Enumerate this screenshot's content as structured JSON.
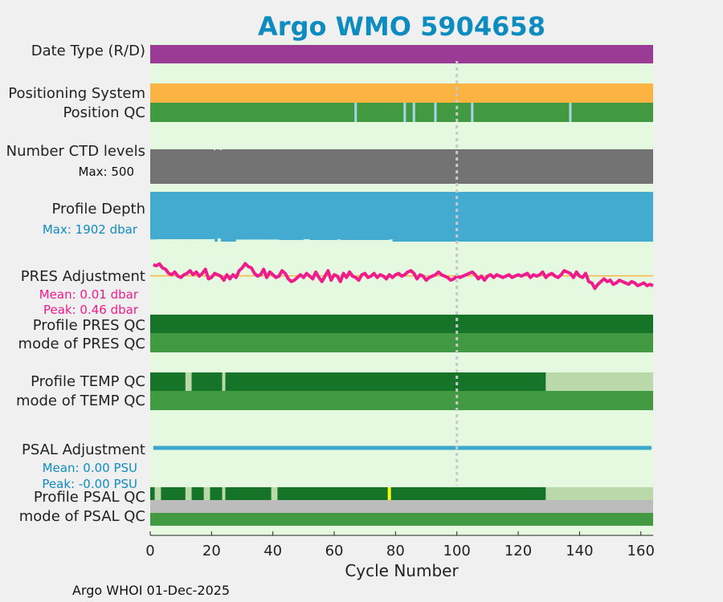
{
  "title": "Argo WMO 5904658",
  "footer": "Argo WHOI 01-Dec-2025",
  "colors": {
    "figure_bg": "#f0f0f0",
    "panel_bg": "#e4f9df",
    "title": "#0e8cc0",
    "purple": "#9a3c96",
    "orange": "#fbb441",
    "good": "#419a41",
    "dark_good": "#167428",
    "light_good": "#bad9aa",
    "light_blue": "#a8d6e8",
    "grey": "#737373",
    "profile_blue": "#42abcf",
    "pink": "#ee1c8c",
    "psal_line": "#3da8cd",
    "flag_grey": "#bcbcbc",
    "yellow": "#ffff00",
    "ref_line": "#c9c9c9"
  },
  "rows": {
    "date_type": {
      "label": "Date Type (R/D)"
    },
    "positioning_system": {
      "label": "Positioning System"
    },
    "position_qc": {
      "label": "Position QC"
    },
    "ctd_levels": {
      "label": "Number CTD levels",
      "max_label": "Max: 500"
    },
    "profile_depth": {
      "label": "Profile Depth",
      "max_label": "Max: 1902 dbar"
    },
    "pres_adjustment": {
      "label": "PRES Adjustment",
      "mean_label": "Mean: 0.01 dbar",
      "peak_label": "Peak: 0.46 dbar"
    },
    "profile_pres_qc": {
      "label": "Profile PRES QC"
    },
    "mode_pres_qc": {
      "label": "mode of PRES QC"
    },
    "profile_temp_qc": {
      "label": "Profile TEMP QC"
    },
    "mode_temp_qc": {
      "label": "mode of TEMP QC"
    },
    "psal_adjustment": {
      "label": "PSAL Adjustment",
      "mean_label": "Mean: 0.00 PSU",
      "peak_label": "Peak: -0.00 PSU"
    },
    "profile_psal_qc": {
      "label": "Profile PSAL QC"
    },
    "mode_psal_qc": {
      "label": "mode of PSAL QC"
    }
  },
  "chart_data": {
    "type": "bar",
    "title": "Argo WMO 5904658",
    "xlabel": "Cycle Number",
    "xlim": [
      0,
      164
    ],
    "xticks": [
      0,
      20,
      40,
      60,
      80,
      100,
      120,
      140,
      160
    ],
    "reference_cycle": 100,
    "grid": false,
    "last_cycle": 164,
    "position_qc_gaps": [
      67,
      83,
      86,
      93,
      105,
      137
    ],
    "ctd_levels_max": 500,
    "ctd_levels_dips": [
      21,
      23
    ],
    "profile_depth_max_dbar": 1902,
    "profile_depth_dips": [
      {
        "start": 0,
        "end": 2,
        "depth": 1880
      },
      {
        "start": 12,
        "end": 13,
        "depth": 1870
      },
      {
        "start": 20,
        "end": 21,
        "depth": 1870
      },
      {
        "start": 22,
        "end": 23,
        "depth": 1840
      },
      {
        "start": 28,
        "end": 42,
        "depth": 1885
      },
      {
        "start": 50,
        "end": 52,
        "depth": 1875
      },
      {
        "start": 61,
        "end": 62,
        "depth": 1880
      },
      {
        "start": 78,
        "end": 79,
        "depth": 1880
      }
    ],
    "pres_adjustment_dbar": [
      0.42,
      0.38,
      0.45,
      0.3,
      0.25,
      0.1,
      0.05,
      0.15,
      0.0,
      -0.05,
      0.05,
      0.1,
      0.2,
      0.05,
      0.15,
      0.0,
      0.1,
      0.25,
      -0.1,
      -0.05,
      0.1,
      0.05,
      0.0,
      -0.15,
      0.05,
      -0.1,
      0.05,
      -0.05,
      0.2,
      0.3,
      0.46,
      0.35,
      0.3,
      0.1,
      0.0,
      0.05,
      0.25,
      -0.05,
      0.15,
      0.05,
      -0.05,
      0.0,
      0.2,
      0.1,
      -0.1,
      -0.2,
      -0.15,
      -0.05,
      0.05,
      -0.05,
      0.1,
      0.0,
      -0.1,
      0.15,
      -0.05,
      -0.2,
      0.0,
      0.2,
      -0.15,
      0.05,
      0.0,
      -0.2,
      0.1,
      -0.05,
      0.15,
      0.0,
      -0.05,
      -0.15,
      0.05,
      0.1,
      -0.05,
      0.0,
      0.1,
      -0.05,
      0.05,
      0.0,
      -0.1,
      0.05,
      -0.05,
      0.05,
      0.1,
      0.0,
      0.05,
      0.15,
      0.2,
      0.1,
      -0.1,
      0.05,
      0.0,
      -0.15,
      -0.05,
      0.0,
      0.05,
      0.15,
      0.05,
      0.0,
      -0.05,
      -0.15,
      -0.1,
      0.0,
      -0.05,
      0.0,
      0.05,
      0.1,
      0.15,
      0.05,
      -0.1,
      0.0,
      -0.15,
      0.0,
      0.05,
      -0.05,
      0.05,
      0.0,
      -0.05,
      0.0,
      0.05,
      -0.05,
      0.0,
      0.05,
      0.0,
      0.05,
      0.1,
      -0.05,
      0.05,
      0.0,
      0.05,
      0.15,
      -0.05,
      0.05,
      0.1,
      0.0,
      -0.05,
      0.05,
      0.2,
      0.15,
      0.1,
      -0.05,
      0.15,
      0.0,
      -0.05,
      0.1,
      -0.2,
      -0.25,
      -0.45,
      -0.3,
      -0.2,
      -0.1,
      -0.2,
      -0.15,
      -0.3,
      -0.25,
      -0.15,
      -0.2,
      -0.25,
      -0.3,
      -0.2,
      -0.25,
      -0.35,
      -0.3,
      -0.25,
      -0.35,
      -0.3,
      -0.35
    ],
    "pres_adjustment_mean_dbar": 0.01,
    "profile_pres_qc": [
      {
        "start": 0,
        "end": 164,
        "flag": "A"
      }
    ],
    "mode_pres_qc": [
      {
        "start": 0,
        "end": 164,
        "flag": "1"
      }
    ],
    "profile_temp_qc": [
      {
        "start": 0,
        "end": 11.5,
        "flag": "A"
      },
      {
        "start": 11.5,
        "end": 13.5,
        "flag": "B"
      },
      {
        "start": 13.5,
        "end": 23.5,
        "flag": "A"
      },
      {
        "start": 23.5,
        "end": 24.5,
        "flag": "B"
      },
      {
        "start": 24.5,
        "end": 129,
        "flag": "A"
      },
      {
        "start": 129,
        "end": 164,
        "flag": "F"
      }
    ],
    "mode_temp_qc": [
      {
        "start": 0,
        "end": 164,
        "flag": "1"
      }
    ],
    "psal_adjustment_psu": 0.0,
    "profile_psal_qc": [
      {
        "start": 0,
        "end": 1.5,
        "flag": "A"
      },
      {
        "start": 1.5,
        "end": 3.5,
        "flag": "B"
      },
      {
        "start": 3.5,
        "end": 11.5,
        "flag": "A"
      },
      {
        "start": 11.5,
        "end": 13.5,
        "flag": "B"
      },
      {
        "start": 13.5,
        "end": 17.5,
        "flag": "A"
      },
      {
        "start": 17.5,
        "end": 19.5,
        "flag": "B"
      },
      {
        "start": 19.5,
        "end": 23.5,
        "flag": "A"
      },
      {
        "start": 23.5,
        "end": 24.5,
        "flag": "B"
      },
      {
        "start": 24.5,
        "end": 39.5,
        "flag": "A"
      },
      {
        "start": 39.5,
        "end": 41.5,
        "flag": "B"
      },
      {
        "start": 41.5,
        "end": 77.5,
        "flag": "A"
      },
      {
        "start": 77.5,
        "end": 78.5,
        "flag": "E"
      },
      {
        "start": 78.5,
        "end": 129,
        "flag": "A"
      },
      {
        "start": 129,
        "end": 164,
        "flag": "F"
      }
    ],
    "mode_psal_qc": [
      {
        "start": 0,
        "end": 164,
        "flag": "4"
      },
      {
        "start": 0,
        "end": 164,
        "flag": "1"
      }
    ]
  }
}
